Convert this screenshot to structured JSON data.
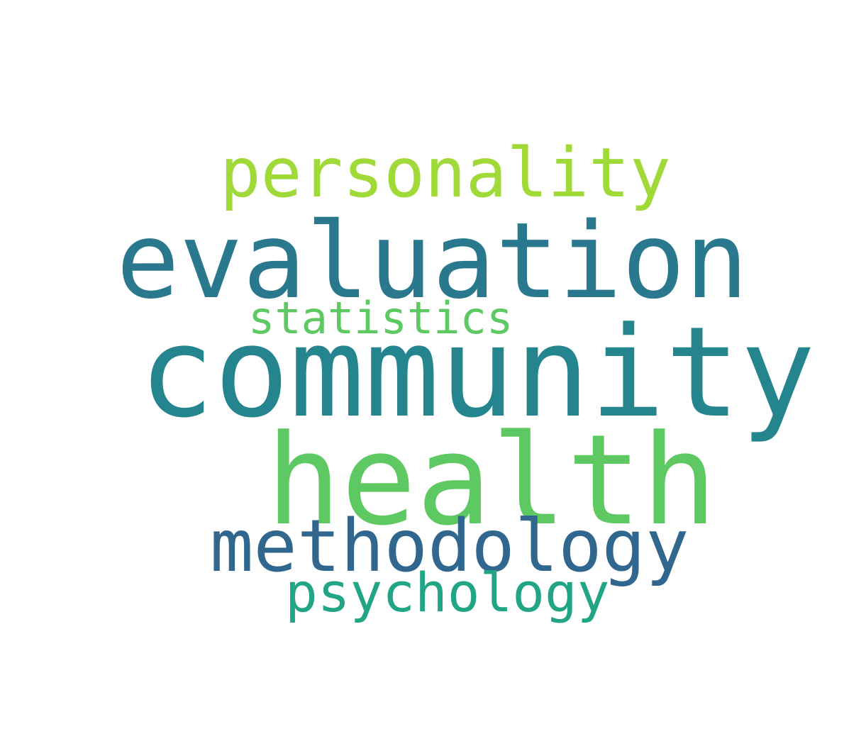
{
  "word_cloud": {
    "words": [
      {
        "id": "personality",
        "text": "personality",
        "color": "#a0da39"
      },
      {
        "id": "evaluation",
        "text": "evaluation",
        "color": "#2a788e"
      },
      {
        "id": "statistics",
        "text": "statistics",
        "color": "#5ec962"
      },
      {
        "id": "community",
        "text": "community",
        "color": "#25858e"
      },
      {
        "id": "health",
        "text": "health",
        "color": "#5ec962"
      },
      {
        "id": "methodology",
        "text": "methodology",
        "color": "#31668e"
      },
      {
        "id": "psychology",
        "text": "psychology",
        "color": "#21a585"
      }
    ]
  }
}
